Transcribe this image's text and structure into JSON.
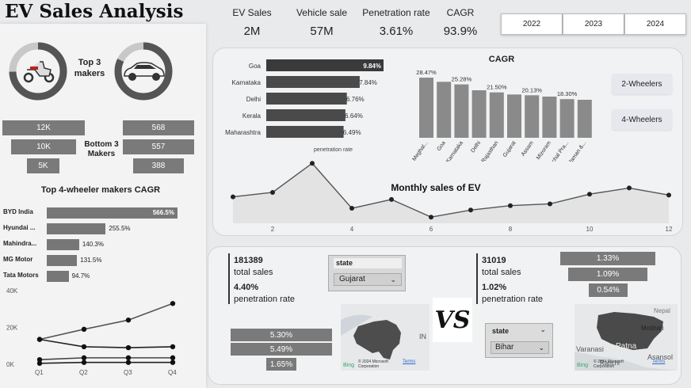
{
  "title": "EV Sales Analysis",
  "kpis": [
    {
      "label": "EV Sales",
      "value": "2M"
    },
    {
      "label": "Vehicle sale",
      "value": "57M"
    },
    {
      "label": "Penetration rate",
      "value": "3.61%"
    },
    {
      "label": "CAGR",
      "value": "93.9%"
    }
  ],
  "years": [
    "2022",
    "2023",
    "2024"
  ],
  "top_makers_label": "Top 3 makers",
  "top_makers_label_l1": "Top 3",
  "top_makers_label_l2": "makers",
  "bottom_makers_label_l1": "Bottom 3",
  "bottom_makers_label_l2": "Makers",
  "bottom_left": [
    "12K",
    "10K",
    "5K"
  ],
  "bottom_right": [
    "568",
    "557",
    "388"
  ],
  "four_wheeler_title": "Top 4-wheeler makers CAGR",
  "four_wheeler": [
    {
      "name": "BYD India",
      "value": "566.5%",
      "v": 566.5
    },
    {
      "name": "Hyundai ...",
      "value": "255.5%",
      "v": 255.5
    },
    {
      "name": "Mahindra...",
      "value": "140.3%",
      "v": 140.3
    },
    {
      "name": "MG Motor",
      "value": "131.5%",
      "v": 131.5
    },
    {
      "name": "Tata Motors",
      "value": "94.7%",
      "v": 94.7
    }
  ],
  "quarter_chart": {
    "yticks": [
      "40K",
      "20K",
      "0K"
    ],
    "xticks": [
      "Q1",
      "Q2",
      "Q3",
      "Q4"
    ],
    "series": [
      [
        13.5,
        19,
        24,
        33
      ],
      [
        13.5,
        9.5,
        9,
        9.5
      ],
      [
        2.5,
        3.5,
        3.5,
        3.5
      ],
      [
        0.5,
        1,
        1,
        1
      ]
    ]
  },
  "penetration": {
    "xlabel": "penetration rate",
    "items": [
      {
        "state": "Goa",
        "value": "9.84%",
        "v": 9.84
      },
      {
        "state": "Karnataka",
        "value": "7.84%",
        "v": 7.84
      },
      {
        "state": "Delhi",
        "value": "6.76%",
        "v": 6.76
      },
      {
        "state": "Kerala",
        "value": "6.64%",
        "v": 6.64
      },
      {
        "state": "Maharashtra",
        "value": "6.49%",
        "v": 6.49
      }
    ]
  },
  "cagr": {
    "title": "CAGR",
    "labels": [
      "Meghal...",
      "Goa",
      "Karnataka",
      "Delhi",
      "Rajasthan",
      "Gujarat",
      "Assam",
      "Mizoram",
      "Arunachal Pra...",
      "Andaman &..."
    ],
    "values": [
      28.47,
      26.5,
      25.28,
      22.5,
      21.5,
      20.5,
      20.13,
      19.5,
      18.3,
      18.0
    ],
    "data_labels": [
      "28.47%",
      "",
      "25.28%",
      "",
      "21.50%",
      "",
      "20.13%",
      "",
      "18.30%",
      ""
    ]
  },
  "type_buttons": [
    "2-Wheelers",
    "4-Wheelers"
  ],
  "monthly": {
    "title": "Monthly sales of EV",
    "xticks": [
      "2",
      "4",
      "6",
      "8",
      "10",
      "12"
    ],
    "values": [
      30,
      35,
      68,
      17,
      27,
      7,
      15,
      20,
      22,
      33,
      40,
      32
    ]
  },
  "left_state": {
    "sales": "181389",
    "sales_label": "total sales",
    "rate": "4.40%",
    "rate_label": "penetration rate",
    "filter_label": "state",
    "filter_value": "Gujarat",
    "bars": [
      "5.30%",
      "5.49%",
      "1.65%"
    ]
  },
  "vs_text": "VS",
  "right_state": {
    "sales": "31019",
    "sales_label": "total sales",
    "rate": "1.02%",
    "rate_label": "penetration rate",
    "filter_label": "state",
    "filter_value": "Bihar",
    "bars": [
      "1.33%",
      "1.09%",
      "0.54%"
    ]
  },
  "map_left": {
    "copyright": "© 2024 Microsoft Corporation",
    "terms": "Terms",
    "bing": "Bing",
    "edge_label": "IN"
  },
  "map_right": {
    "copyright": "© 2024 Microsoft Corporation",
    "terms": "Terms",
    "bing": "Bing",
    "cities": [
      "Motihari",
      "Patna",
      "Varanasi",
      "Asansol",
      "Ranchi",
      "Nepal"
    ]
  }
}
